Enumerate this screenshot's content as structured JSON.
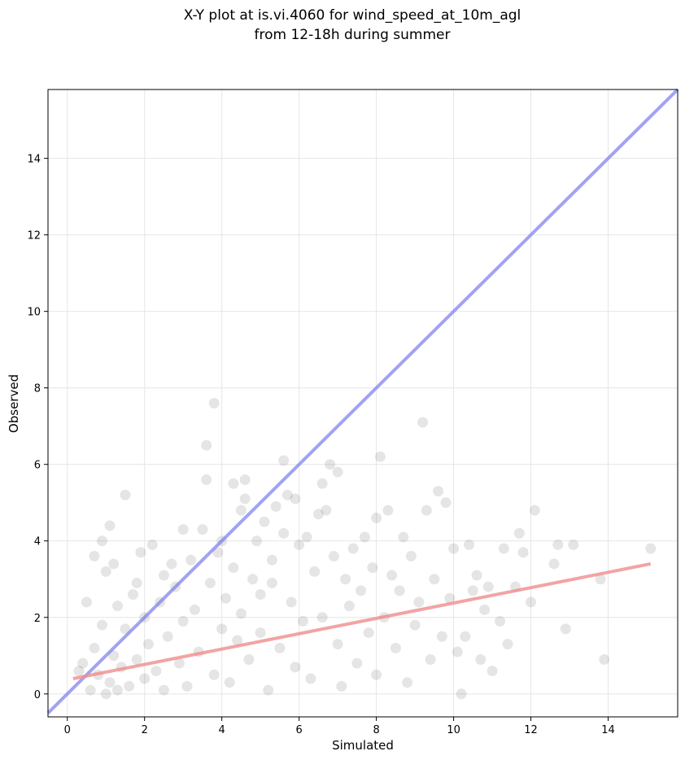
{
  "chart_data": {
    "type": "scatter",
    "title_line1": "X-Y plot at is.vi.4060 for wind_speed_at_10m_agl",
    "title_line2": "from 12-18h during summer",
    "xlabel": "Simulated",
    "ylabel": "Observed",
    "xlim": [
      -0.5,
      15.8
    ],
    "ylim": [
      -0.6,
      15.8
    ],
    "xticks": [
      0,
      2,
      4,
      6,
      8,
      10,
      12,
      14
    ],
    "yticks": [
      0,
      2,
      4,
      6,
      8,
      10,
      12,
      14
    ],
    "grid": true,
    "colors": {
      "points": "#000000",
      "identity_line": "#7b7bf0",
      "fit_line": "#f08c8c"
    },
    "identity_line": {
      "x": [
        -0.5,
        15.8
      ],
      "y": [
        -0.5,
        15.8
      ]
    },
    "fit_line": {
      "x": [
        0.15,
        15.1
      ],
      "y": [
        0.4,
        3.4
      ]
    },
    "points": [
      [
        0.3,
        0.6
      ],
      [
        0.4,
        0.8
      ],
      [
        0.5,
        2.4
      ],
      [
        0.6,
        0.1
      ],
      [
        0.7,
        1.2
      ],
      [
        0.7,
        3.6
      ],
      [
        0.8,
        0.5
      ],
      [
        0.9,
        4.0
      ],
      [
        0.9,
        1.8
      ],
      [
        1.0,
        3.2
      ],
      [
        1.0,
        0.0
      ],
      [
        1.1,
        0.3
      ],
      [
        1.1,
        4.4
      ],
      [
        1.2,
        1.0
      ],
      [
        1.2,
        3.4
      ],
      [
        1.3,
        0.1
      ],
      [
        1.3,
        2.3
      ],
      [
        1.4,
        0.7
      ],
      [
        1.5,
        5.2
      ],
      [
        1.5,
        1.7
      ],
      [
        1.6,
        0.2
      ],
      [
        1.7,
        2.6
      ],
      [
        1.8,
        0.9
      ],
      [
        1.8,
        2.9
      ],
      [
        1.9,
        3.7
      ],
      [
        2.0,
        0.4
      ],
      [
        2.0,
        2.0
      ],
      [
        2.1,
        1.3
      ],
      [
        2.2,
        3.9
      ],
      [
        2.3,
        0.6
      ],
      [
        2.4,
        2.4
      ],
      [
        2.5,
        3.1
      ],
      [
        2.5,
        0.1
      ],
      [
        2.6,
        1.5
      ],
      [
        2.7,
        3.4
      ],
      [
        2.8,
        2.8
      ],
      [
        2.9,
        0.8
      ],
      [
        3.0,
        4.3
      ],
      [
        3.0,
        1.9
      ],
      [
        3.1,
        0.2
      ],
      [
        3.2,
        3.5
      ],
      [
        3.3,
        2.2
      ],
      [
        3.4,
        1.1
      ],
      [
        3.5,
        4.3
      ],
      [
        3.6,
        6.5
      ],
      [
        3.6,
        5.6
      ],
      [
        3.7,
        2.9
      ],
      [
        3.8,
        7.6
      ],
      [
        3.8,
        0.5
      ],
      [
        3.9,
        3.7
      ],
      [
        4.0,
        1.7
      ],
      [
        4.0,
        4.0
      ],
      [
        4.1,
        2.5
      ],
      [
        4.2,
        0.3
      ],
      [
        4.3,
        3.3
      ],
      [
        4.3,
        5.5
      ],
      [
        4.4,
        1.4
      ],
      [
        4.5,
        4.8
      ],
      [
        4.5,
        2.1
      ],
      [
        4.6,
        5.1
      ],
      [
        4.6,
        5.6
      ],
      [
        4.7,
        0.9
      ],
      [
        4.8,
        3.0
      ],
      [
        4.9,
        4.0
      ],
      [
        5.0,
        1.6
      ],
      [
        5.0,
        2.6
      ],
      [
        5.1,
        4.5
      ],
      [
        5.2,
        0.1
      ],
      [
        5.3,
        3.5
      ],
      [
        5.3,
        2.9
      ],
      [
        5.4,
        4.9
      ],
      [
        5.5,
        1.2
      ],
      [
        5.6,
        4.2
      ],
      [
        5.6,
        6.1
      ],
      [
        5.7,
        5.2
      ],
      [
        5.8,
        2.4
      ],
      [
        5.9,
        0.7
      ],
      [
        5.9,
        5.1
      ],
      [
        6.0,
        3.9
      ],
      [
        6.1,
        1.9
      ],
      [
        6.2,
        4.1
      ],
      [
        6.3,
        0.4
      ],
      [
        6.4,
        3.2
      ],
      [
        6.5,
        4.7
      ],
      [
        6.6,
        5.5
      ],
      [
        6.6,
        2.0
      ],
      [
        6.7,
        4.8
      ],
      [
        6.8,
        6.0
      ],
      [
        6.9,
        3.6
      ],
      [
        7.0,
        5.8
      ],
      [
        7.0,
        1.3
      ],
      [
        7.1,
        0.2
      ],
      [
        7.2,
        3.0
      ],
      [
        7.3,
        2.3
      ],
      [
        7.4,
        3.8
      ],
      [
        7.5,
        0.8
      ],
      [
        7.6,
        2.7
      ],
      [
        7.7,
        4.1
      ],
      [
        7.8,
        1.6
      ],
      [
        7.9,
        3.3
      ],
      [
        8.0,
        4.6
      ],
      [
        8.0,
        0.5
      ],
      [
        8.1,
        6.2
      ],
      [
        8.2,
        2.0
      ],
      [
        8.3,
        4.8
      ],
      [
        8.4,
        3.1
      ],
      [
        8.5,
        1.2
      ],
      [
        8.6,
        2.7
      ],
      [
        8.7,
        4.1
      ],
      [
        8.8,
        0.3
      ],
      [
        8.9,
        3.6
      ],
      [
        9.0,
        1.8
      ],
      [
        9.1,
        2.4
      ],
      [
        9.2,
        7.1
      ],
      [
        9.3,
        4.8
      ],
      [
        9.4,
        0.9
      ],
      [
        9.5,
        3.0
      ],
      [
        9.6,
        5.3
      ],
      [
        9.7,
        1.5
      ],
      [
        9.8,
        5.0
      ],
      [
        9.9,
        2.5
      ],
      [
        10.0,
        3.8
      ],
      [
        10.1,
        1.1
      ],
      [
        10.2,
        0.0
      ],
      [
        10.3,
        1.5
      ],
      [
        10.4,
        3.9
      ],
      [
        10.5,
        2.7
      ],
      [
        10.6,
        3.1
      ],
      [
        10.7,
        0.9
      ],
      [
        10.8,
        2.2
      ],
      [
        10.9,
        2.8
      ],
      [
        11.0,
        0.6
      ],
      [
        11.2,
        1.9
      ],
      [
        11.3,
        3.8
      ],
      [
        11.4,
        1.3
      ],
      [
        11.6,
        2.8
      ],
      [
        11.7,
        4.2
      ],
      [
        11.8,
        3.7
      ],
      [
        12.0,
        2.4
      ],
      [
        12.1,
        4.8
      ],
      [
        12.6,
        3.4
      ],
      [
        12.7,
        3.9
      ],
      [
        12.9,
        1.7
      ],
      [
        13.1,
        3.9
      ],
      [
        13.8,
        3.0
      ],
      [
        13.9,
        0.9
      ],
      [
        15.1,
        3.8
      ]
    ]
  }
}
